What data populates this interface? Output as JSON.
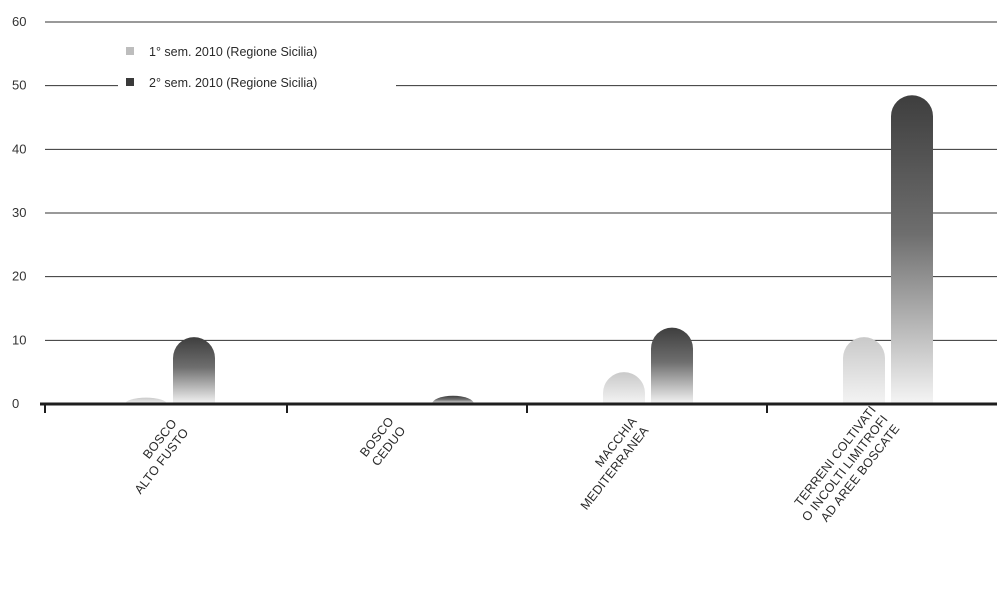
{
  "chart_data": {
    "type": "bar",
    "title": "",
    "xlabel": "",
    "ylabel": "",
    "ylim": [
      0,
      60
    ],
    "yticks": [
      0,
      10,
      20,
      30,
      40,
      50,
      60
    ],
    "grid": true,
    "legend_position": "top-left",
    "categories": [
      [
        "BOSCO",
        "ALTO FUSTO"
      ],
      [
        "BOSCO",
        "CEDUO"
      ],
      [
        "MACCHIA",
        "MEDITERRANEA"
      ],
      [
        "TERRENI COLTIVATI",
        "O INCOLTI LIMITROFI",
        "AD AREE BOSCATE"
      ]
    ],
    "series": [
      {
        "name": "1° sem. 2010 (Regione Sicilia)",
        "values": [
          1,
          0,
          5,
          10.5
        ],
        "color": "#c4c4c4"
      },
      {
        "name": "2° sem. 2010 (Regione Sicilia)",
        "values": [
          10.5,
          1.3,
          12,
          48.5
        ],
        "color": "#4a4a4a"
      }
    ]
  }
}
